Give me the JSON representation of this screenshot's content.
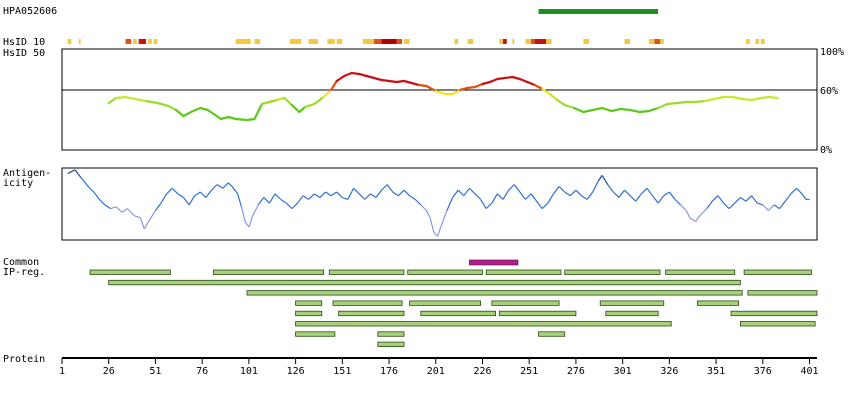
{
  "antigen_id": "HPA052606",
  "labels": {
    "hsid10": "HsID 10",
    "hsid50": "HsID 50",
    "antigenicity_line1": "Antigen-",
    "antigenicity_line2": "icity",
    "common_line1": "Common",
    "common_line2": "IP-reg.",
    "protein": "Protein"
  },
  "identity_scale": {
    "top": "100%",
    "mid": "60%",
    "bottom": "0%"
  },
  "protein_axis": {
    "min": 1,
    "max": 405,
    "ticks": [
      1,
      26,
      51,
      76,
      101,
      126,
      151,
      176,
      201,
      226,
      251,
      276,
      301,
      326,
      351,
      376,
      401
    ]
  },
  "antigen_range": [
    256,
    320
  ],
  "hsid10_blocks": [
    {
      "start": 4,
      "end": 6,
      "color": "#f5c842"
    },
    {
      "start": 10,
      "end": 11,
      "color": "#f5c842"
    },
    {
      "start": 35,
      "end": 38,
      "color": "#e05010"
    },
    {
      "start": 39,
      "end": 41,
      "color": "#f5c842"
    },
    {
      "start": 42,
      "end": 46,
      "color": "#c81010"
    },
    {
      "start": 47,
      "end": 49,
      "color": "#f5c842"
    },
    {
      "start": 50,
      "end": 52,
      "color": "#f5c842"
    },
    {
      "start": 94,
      "end": 102,
      "color": "#f5c842"
    },
    {
      "start": 104,
      "end": 107,
      "color": "#f5c842"
    },
    {
      "start": 123,
      "end": 129,
      "color": "#f5c842"
    },
    {
      "start": 133,
      "end": 138,
      "color": "#f5c842"
    },
    {
      "start": 143,
      "end": 147,
      "color": "#f5c842"
    },
    {
      "start": 148,
      "end": 151,
      "color": "#f5c842"
    },
    {
      "start": 162,
      "end": 168,
      "color": "#f5c842"
    },
    {
      "start": 168,
      "end": 172,
      "color": "#e05010"
    },
    {
      "start": 172,
      "end": 180,
      "color": "#b00000"
    },
    {
      "start": 180,
      "end": 183,
      "color": "#e05010"
    },
    {
      "start": 184,
      "end": 187,
      "color": "#f5c842"
    },
    {
      "start": 211,
      "end": 213,
      "color": "#f5c842"
    },
    {
      "start": 218,
      "end": 221,
      "color": "#f5c842"
    },
    {
      "start": 235,
      "end": 237,
      "color": "#f5c842"
    },
    {
      "start": 237,
      "end": 239,
      "color": "#c81010"
    },
    {
      "start": 242,
      "end": 243,
      "color": "#f5c842"
    },
    {
      "start": 249,
      "end": 252,
      "color": "#f5c842"
    },
    {
      "start": 252,
      "end": 254,
      "color": "#e05010"
    },
    {
      "start": 254,
      "end": 260,
      "color": "#c81010"
    },
    {
      "start": 260,
      "end": 263,
      "color": "#f5c842"
    },
    {
      "start": 280,
      "end": 283,
      "color": "#f5c842"
    },
    {
      "start": 302,
      "end": 305,
      "color": "#f5c842"
    },
    {
      "start": 315,
      "end": 318,
      "color": "#f5c842"
    },
    {
      "start": 318,
      "end": 321,
      "color": "#e05010"
    },
    {
      "start": 321,
      "end": 323,
      "color": "#f5c842"
    },
    {
      "start": 367,
      "end": 369,
      "color": "#f5c842"
    },
    {
      "start": 372,
      "end": 374,
      "color": "#f5c842"
    },
    {
      "start": 375,
      "end": 377,
      "color": "#f5c842"
    }
  ],
  "identity_trace": [
    {
      "pos": 26,
      "id": 47
    },
    {
      "pos": 30,
      "id": 52
    },
    {
      "pos": 35,
      "id": 53
    },
    {
      "pos": 40,
      "id": 51
    },
    {
      "pos": 46,
      "id": 49
    },
    {
      "pos": 52,
      "id": 47
    },
    {
      "pos": 58,
      "id": 44
    },
    {
      "pos": 62,
      "id": 40
    },
    {
      "pos": 66,
      "id": 34
    },
    {
      "pos": 70,
      "id": 38
    },
    {
      "pos": 75,
      "id": 42
    },
    {
      "pos": 79,
      "id": 40
    },
    {
      "pos": 83,
      "id": 35
    },
    {
      "pos": 86,
      "id": 31
    },
    {
      "pos": 90,
      "id": 33
    },
    {
      "pos": 94,
      "id": 31
    },
    {
      "pos": 100,
      "id": 30
    },
    {
      "pos": 104,
      "id": 31
    },
    {
      "pos": 108,
      "id": 46
    },
    {
      "pos": 112,
      "id": 48
    },
    {
      "pos": 116,
      "id": 50
    },
    {
      "pos": 120,
      "id": 52
    },
    {
      "pos": 124,
      "id": 45
    },
    {
      "pos": 128,
      "id": 38
    },
    {
      "pos": 131,
      "id": 43
    },
    {
      "pos": 136,
      "id": 46
    },
    {
      "pos": 141,
      "id": 53
    },
    {
      "pos": 145,
      "id": 60
    },
    {
      "pos": 148,
      "id": 69
    },
    {
      "pos": 152,
      "id": 74
    },
    {
      "pos": 156,
      "id": 77
    },
    {
      "pos": 160,
      "id": 76
    },
    {
      "pos": 164,
      "id": 74
    },
    {
      "pos": 168,
      "id": 72
    },
    {
      "pos": 172,
      "id": 70
    },
    {
      "pos": 176,
      "id": 69
    },
    {
      "pos": 180,
      "id": 68
    },
    {
      "pos": 184,
      "id": 69
    },
    {
      "pos": 188,
      "id": 67
    },
    {
      "pos": 192,
      "id": 65
    },
    {
      "pos": 196,
      "id": 64
    },
    {
      "pos": 199,
      "id": 61
    },
    {
      "pos": 201,
      "id": 59
    },
    {
      "pos": 206,
      "id": 56
    },
    {
      "pos": 210,
      "id": 56
    },
    {
      "pos": 214,
      "id": 60
    },
    {
      "pos": 218,
      "id": 62
    },
    {
      "pos": 222,
      "id": 63
    },
    {
      "pos": 226,
      "id": 66
    },
    {
      "pos": 230,
      "id": 68
    },
    {
      "pos": 234,
      "id": 71
    },
    {
      "pos": 238,
      "id": 72
    },
    {
      "pos": 242,
      "id": 73
    },
    {
      "pos": 246,
      "id": 71
    },
    {
      "pos": 250,
      "id": 68
    },
    {
      "pos": 254,
      "id": 65
    },
    {
      "pos": 258,
      "id": 61
    },
    {
      "pos": 262,
      "id": 56
    },
    {
      "pos": 266,
      "id": 50
    },
    {
      "pos": 270,
      "id": 45
    },
    {
      "pos": 275,
      "id": 42
    },
    {
      "pos": 280,
      "id": 38
    },
    {
      "pos": 285,
      "id": 40
    },
    {
      "pos": 290,
      "id": 42
    },
    {
      "pos": 295,
      "id": 39
    },
    {
      "pos": 300,
      "id": 41
    },
    {
      "pos": 305,
      "id": 40
    },
    {
      "pos": 310,
      "id": 38
    },
    {
      "pos": 315,
      "id": 39
    },
    {
      "pos": 320,
      "id": 42
    },
    {
      "pos": 325,
      "id": 46
    },
    {
      "pos": 330,
      "id": 47
    },
    {
      "pos": 335,
      "id": 48
    },
    {
      "pos": 340,
      "id": 48
    },
    {
      "pos": 345,
      "id": 49
    },
    {
      "pos": 350,
      "id": 51
    },
    {
      "pos": 355,
      "id": 53
    },
    {
      "pos": 360,
      "id": 53
    },
    {
      "pos": 365,
      "id": 51
    },
    {
      "pos": 370,
      "id": 50
    },
    {
      "pos": 375,
      "id": 52
    },
    {
      "pos": 380,
      "id": 53
    },
    {
      "pos": 384,
      "id": 52
    }
  ],
  "antigenicity_trace": [
    {
      "pos": 4,
      "v": 1.4
    },
    {
      "pos": 8,
      "v": 1.6
    },
    {
      "pos": 11,
      "v": 1.2
    },
    {
      "pos": 15,
      "v": 0.7
    },
    {
      "pos": 18,
      "v": 0.4
    },
    {
      "pos": 21,
      "v": 0.0
    },
    {
      "pos": 24,
      "v": -0.3
    },
    {
      "pos": 27,
      "v": -0.5
    },
    {
      "pos": 30,
      "v": -0.4
    },
    {
      "pos": 33,
      "v": -0.7
    },
    {
      "pos": 36,
      "v": -0.5
    },
    {
      "pos": 40,
      "v": -0.9
    },
    {
      "pos": 43,
      "v": -1.0
    },
    {
      "pos": 45,
      "v": -1.6
    },
    {
      "pos": 48,
      "v": -1.1
    },
    {
      "pos": 51,
      "v": -0.6
    },
    {
      "pos": 54,
      "v": -0.2
    },
    {
      "pos": 57,
      "v": 0.3
    },
    {
      "pos": 60,
      "v": 0.6
    },
    {
      "pos": 63,
      "v": 0.3
    },
    {
      "pos": 66,
      "v": 0.1
    },
    {
      "pos": 69,
      "v": -0.3
    },
    {
      "pos": 72,
      "v": 0.2
    },
    {
      "pos": 75,
      "v": 0.4
    },
    {
      "pos": 78,
      "v": 0.1
    },
    {
      "pos": 81,
      "v": 0.5
    },
    {
      "pos": 84,
      "v": 0.8
    },
    {
      "pos": 87,
      "v": 0.6
    },
    {
      "pos": 90,
      "v": 0.9
    },
    {
      "pos": 92,
      "v": 0.7
    },
    {
      "pos": 95,
      "v": 0.3
    },
    {
      "pos": 97,
      "v": -0.4
    },
    {
      "pos": 99,
      "v": -1.2
    },
    {
      "pos": 101,
      "v": -1.5
    },
    {
      "pos": 103,
      "v": -0.9
    },
    {
      "pos": 106,
      "v": -0.3
    },
    {
      "pos": 109,
      "v": 0.1
    },
    {
      "pos": 112,
      "v": -0.2
    },
    {
      "pos": 115,
      "v": 0.3
    },
    {
      "pos": 118,
      "v": 0.0
    },
    {
      "pos": 121,
      "v": -0.2
    },
    {
      "pos": 124,
      "v": -0.5
    },
    {
      "pos": 127,
      "v": -0.2
    },
    {
      "pos": 130,
      "v": 0.2
    },
    {
      "pos": 133,
      "v": 0.0
    },
    {
      "pos": 136,
      "v": 0.3
    },
    {
      "pos": 139,
      "v": 0.1
    },
    {
      "pos": 142,
      "v": 0.4
    },
    {
      "pos": 145,
      "v": 0.2
    },
    {
      "pos": 148,
      "v": 0.4
    },
    {
      "pos": 151,
      "v": 0.1
    },
    {
      "pos": 154,
      "v": 0.0
    },
    {
      "pos": 157,
      "v": 0.6
    },
    {
      "pos": 160,
      "v": 0.3
    },
    {
      "pos": 163,
      "v": 0.0
    },
    {
      "pos": 166,
      "v": 0.3
    },
    {
      "pos": 169,
      "v": 0.1
    },
    {
      "pos": 172,
      "v": 0.5
    },
    {
      "pos": 175,
      "v": 0.8
    },
    {
      "pos": 178,
      "v": 0.4
    },
    {
      "pos": 181,
      "v": 0.2
    },
    {
      "pos": 184,
      "v": 0.5
    },
    {
      "pos": 187,
      "v": 0.2
    },
    {
      "pos": 190,
      "v": 0.0
    },
    {
      "pos": 193,
      "v": -0.3
    },
    {
      "pos": 196,
      "v": -0.6
    },
    {
      "pos": 198,
      "v": -1.0
    },
    {
      "pos": 200,
      "v": -1.8
    },
    {
      "pos": 202,
      "v": -2.0
    },
    {
      "pos": 204,
      "v": -1.4
    },
    {
      "pos": 207,
      "v": -0.6
    },
    {
      "pos": 210,
      "v": 0.1
    },
    {
      "pos": 213,
      "v": 0.5
    },
    {
      "pos": 216,
      "v": 0.2
    },
    {
      "pos": 219,
      "v": 0.6
    },
    {
      "pos": 222,
      "v": 0.3
    },
    {
      "pos": 225,
      "v": 0.0
    },
    {
      "pos": 228,
      "v": -0.5
    },
    {
      "pos": 231,
      "v": -0.2
    },
    {
      "pos": 234,
      "v": 0.3
    },
    {
      "pos": 237,
      "v": 0.0
    },
    {
      "pos": 240,
      "v": 0.5
    },
    {
      "pos": 243,
      "v": 0.8
    },
    {
      "pos": 246,
      "v": 0.4
    },
    {
      "pos": 249,
      "v": 0.0
    },
    {
      "pos": 252,
      "v": 0.3
    },
    {
      "pos": 255,
      "v": -0.1
    },
    {
      "pos": 258,
      "v": -0.5
    },
    {
      "pos": 261,
      "v": -0.2
    },
    {
      "pos": 264,
      "v": 0.3
    },
    {
      "pos": 267,
      "v": 0.7
    },
    {
      "pos": 270,
      "v": 0.4
    },
    {
      "pos": 273,
      "v": 0.2
    },
    {
      "pos": 276,
      "v": 0.5
    },
    {
      "pos": 279,
      "v": 0.2
    },
    {
      "pos": 282,
      "v": 0.0
    },
    {
      "pos": 285,
      "v": 0.4
    },
    {
      "pos": 288,
      "v": 1.0
    },
    {
      "pos": 290,
      "v": 1.3
    },
    {
      "pos": 293,
      "v": 0.8
    },
    {
      "pos": 296,
      "v": 0.4
    },
    {
      "pos": 299,
      "v": 0.1
    },
    {
      "pos": 302,
      "v": 0.5
    },
    {
      "pos": 305,
      "v": 0.2
    },
    {
      "pos": 308,
      "v": -0.1
    },
    {
      "pos": 311,
      "v": 0.3
    },
    {
      "pos": 314,
      "v": 0.6
    },
    {
      "pos": 317,
      "v": 0.2
    },
    {
      "pos": 320,
      "v": -0.2
    },
    {
      "pos": 323,
      "v": 0.2
    },
    {
      "pos": 326,
      "v": 0.4
    },
    {
      "pos": 329,
      "v": 0.0
    },
    {
      "pos": 332,
      "v": -0.3
    },
    {
      "pos": 335,
      "v": -0.6
    },
    {
      "pos": 337,
      "v": -1.0
    },
    {
      "pos": 340,
      "v": -1.2
    },
    {
      "pos": 343,
      "v": -0.8
    },
    {
      "pos": 346,
      "v": -0.5
    },
    {
      "pos": 349,
      "v": -0.1
    },
    {
      "pos": 352,
      "v": 0.2
    },
    {
      "pos": 355,
      "v": -0.2
    },
    {
      "pos": 358,
      "v": -0.5
    },
    {
      "pos": 361,
      "v": -0.2
    },
    {
      "pos": 364,
      "v": 0.1
    },
    {
      "pos": 367,
      "v": -0.1
    },
    {
      "pos": 370,
      "v": 0.2
    },
    {
      "pos": 373,
      "v": -0.2
    },
    {
      "pos": 376,
      "v": -0.3
    },
    {
      "pos": 379,
      "v": -0.6
    },
    {
      "pos": 382,
      "v": -0.3
    },
    {
      "pos": 385,
      "v": -0.5
    },
    {
      "pos": 388,
      "v": -0.1
    },
    {
      "pos": 391,
      "v": 0.3
    },
    {
      "pos": 394,
      "v": 0.6
    },
    {
      "pos": 397,
      "v": 0.3
    },
    {
      "pos": 399,
      "v": 0.0
    },
    {
      "pos": 401,
      "v": 0.0
    }
  ],
  "epitope_highlight": [
    219,
    245
  ],
  "common_regions": [
    [
      [
        16,
        59
      ],
      [
        82,
        141
      ],
      [
        144,
        184
      ],
      [
        186,
        226
      ],
      [
        228,
        268
      ],
      [
        270,
        321
      ],
      [
        324,
        361
      ],
      [
        366,
        402
      ]
    ],
    [
      [
        26,
        364
      ]
    ],
    [
      [
        100,
        365
      ],
      [
        368,
        405
      ]
    ],
    [
      [
        126,
        140
      ],
      [
        146,
        183
      ],
      [
        187,
        225
      ],
      [
        231,
        267
      ],
      [
        289,
        323
      ],
      [
        341,
        363
      ]
    ],
    [
      [
        126,
        140
      ],
      [
        149,
        184
      ],
      [
        193,
        233
      ],
      [
        235,
        276
      ],
      [
        292,
        320
      ],
      [
        359,
        405
      ]
    ],
    [
      [
        126,
        327
      ],
      [
        364,
        404
      ]
    ],
    [
      [
        126,
        147
      ],
      [
        170,
        184
      ],
      [
        256,
        270
      ]
    ],
    [
      [
        170,
        184
      ]
    ]
  ]
}
